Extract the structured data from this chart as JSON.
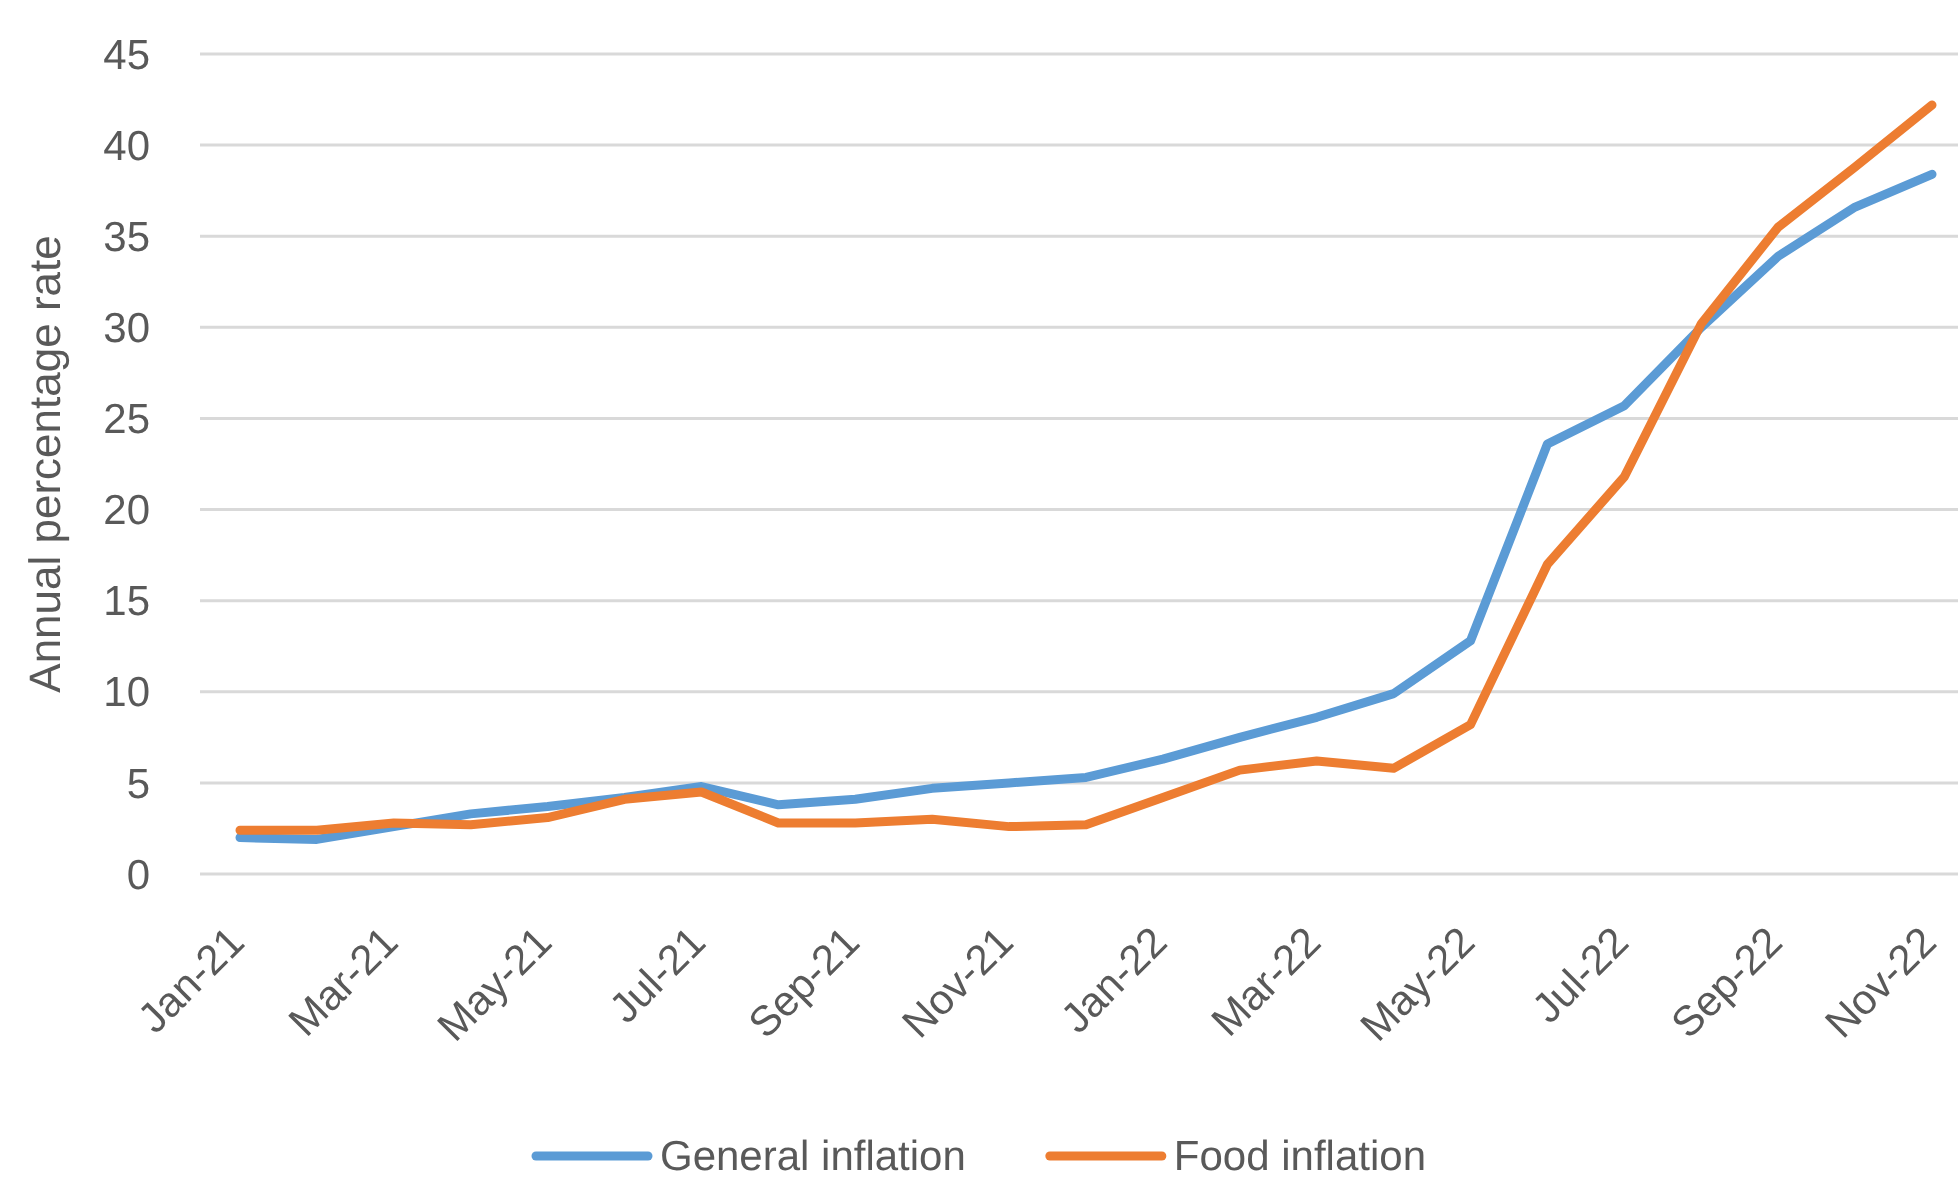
{
  "chart_data": {
    "type": "line",
    "ylabel": "Annual percentage rate",
    "categories": [
      "Jan-21",
      null,
      "Mar-21",
      null,
      "May-21",
      null,
      "Jul-21",
      null,
      "Sep-21",
      null,
      "Nov-21",
      null,
      "Jan-22",
      null,
      "Mar-22",
      null,
      "May-22",
      null,
      "Jul-22",
      null,
      "Sep-22",
      null,
      "Nov-22"
    ],
    "series": [
      {
        "name": "General inflation",
        "color": "#5b9bd5",
        "values": [
          2.0,
          1.9,
          2.6,
          3.3,
          3.7,
          4.2,
          4.8,
          3.8,
          4.1,
          4.7,
          5.0,
          5.3,
          6.3,
          7.5,
          8.6,
          9.9,
          12.8,
          23.6,
          25.7,
          30.0,
          33.9,
          36.6,
          38.4
        ]
      },
      {
        "name": "Food inflation",
        "color": "#ed7d31",
        "values": [
          2.4,
          2.4,
          2.8,
          2.7,
          3.1,
          4.1,
          4.5,
          2.8,
          2.8,
          3.0,
          2.6,
          2.7,
          4.2,
          5.7,
          6.2,
          5.8,
          8.2,
          17.0,
          21.8,
          30.2,
          35.5,
          38.8,
          42.2
        ]
      }
    ],
    "ylim": [
      0,
      45
    ],
    "yticks": [
      0,
      5,
      10,
      15,
      20,
      25,
      30,
      35,
      40,
      45
    ],
    "grid": "y",
    "legend": "bottom"
  }
}
